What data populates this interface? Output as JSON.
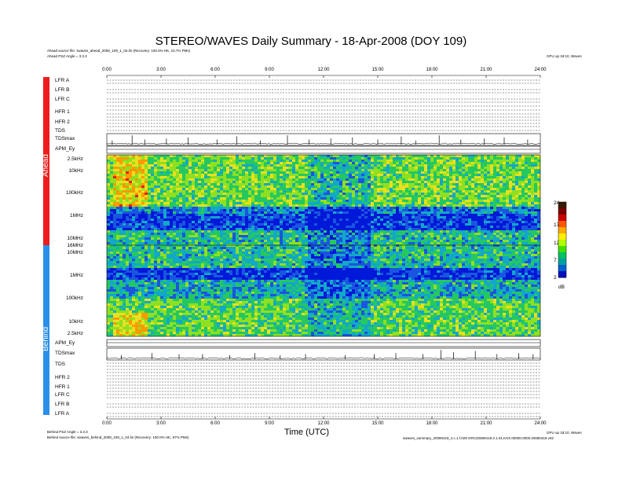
{
  "header": {
    "title": "STEREO/WAVES Daily Summary - 18-Apr-2008 (DOY 109)",
    "ahead_source": "Ahead source file: swaves_ahead_2008_109_1_04.lin (Recovery: 100.0% HK, 10.7% PMs)",
    "ahead_angle": "Ahead PSZ Angle = 3.3.3",
    "right_note": "GPU up 18:10, Waves"
  },
  "footer": {
    "behind_angle": "Behind PSZ Angle = 3.3.3",
    "behind_source": "Behind source file: swaves_behind_2008_109_1_04.lin (Recovery: 100.0% HK, 97% PMs)",
    "right_note": "GPU up 18:10, Waves",
    "file_note": "swaves_summary_20080418_s.c.1.f.029 GRC20080418.2.1.01.KXX.00000.0000.20080419 v02",
    "xlabel": "Time (UTC)"
  },
  "sidebar": {
    "ahead_label": "Ahead",
    "behind_label": "Behind",
    "ahead_color": "#ee1c1c",
    "behind_color": "#2a8fe8"
  },
  "chart_data": {
    "type": "heatmap",
    "title": "STEREO/WAVES Daily Summary - 18-Apr-2008 (DOY 109)",
    "xlabel": "Time (UTC)",
    "x_ticks": [
      "0:00",
      "3:00",
      "6:00",
      "9:00",
      "12:00",
      "15:00",
      "18:00",
      "21:00",
      "24:00"
    ],
    "xlim": [
      0,
      24
    ],
    "ahead_rows": [
      "LFR A",
      "LFR B",
      "LFR C",
      "HFR 1",
      "HFR 2",
      "TDS",
      "TDSmax",
      "APM_Ey"
    ],
    "behind_rows": [
      "APM_Ey",
      "TDSmax",
      "TDS",
      "HFR 2",
      "HFR 1",
      "LFR C",
      "LFR B",
      "LFR A"
    ],
    "ahead_freq_ticks": [
      "2.5kHz",
      "10kHz",
      "100kHz",
      "1MHz",
      "10MHz",
      "16MHz"
    ],
    "behind_freq_ticks": [
      "10MHz",
      "1MHz",
      "100kHz",
      "10kHz",
      "2.5kHz"
    ],
    "colorbar": {
      "ticks": [
        "24",
        "17",
        "12",
        "7",
        "2"
      ],
      "unit": "dB",
      "range": [
        2,
        24
      ],
      "colors": [
        "#3a1a00",
        "#7a0000",
        "#cc0000",
        "#ff5500",
        "#ffaa00",
        "#ffee00",
        "#b0ff00",
        "#40e000",
        "#00c060",
        "#00a0a0",
        "#0060d0",
        "#0010c0"
      ]
    },
    "spectrogram_colors": [
      "#0018d8",
      "#1a55e0",
      "#12a8c8",
      "#25c860",
      "#8ee020",
      "#e8e020",
      "#ff9a00",
      "#e82000"
    ],
    "tds_peaks_ahead": [
      [
        0.3,
        0.4
      ],
      [
        1.4,
        0.9
      ],
      [
        2.1,
        0.5
      ],
      [
        3.3,
        0.6
      ],
      [
        4.5,
        0.7
      ],
      [
        6.1,
        0.5
      ],
      [
        7.2,
        0.8
      ],
      [
        8.5,
        0.4
      ],
      [
        10.0,
        0.9
      ],
      [
        11.2,
        0.5
      ],
      [
        12.4,
        0.6
      ],
      [
        13.6,
        0.7
      ],
      [
        15.0,
        0.5
      ],
      [
        16.3,
        0.8
      ],
      [
        17.1,
        0.4
      ],
      [
        18.4,
        0.9
      ],
      [
        19.6,
        0.5
      ],
      [
        20.9,
        0.6
      ],
      [
        22.0,
        0.7
      ],
      [
        23.3,
        0.5
      ]
    ],
    "tds_peaks_behind": [
      [
        0.8,
        0.4
      ],
      [
        2.5,
        0.6
      ],
      [
        4.0,
        0.5
      ],
      [
        5.3,
        0.5
      ],
      [
        6.8,
        0.4
      ],
      [
        8.2,
        0.6
      ],
      [
        9.6,
        0.4
      ],
      [
        11.0,
        0.5
      ],
      [
        13.2,
        0.4
      ],
      [
        14.8,
        0.5
      ],
      [
        16.0,
        0.6
      ],
      [
        17.5,
        0.5
      ],
      [
        18.5,
        0.9
      ],
      [
        19.2,
        0.7
      ],
      [
        20.4,
        0.8
      ],
      [
        21.6,
        0.5
      ],
      [
        22.8,
        0.6
      ],
      [
        23.6,
        0.5
      ]
    ]
  }
}
